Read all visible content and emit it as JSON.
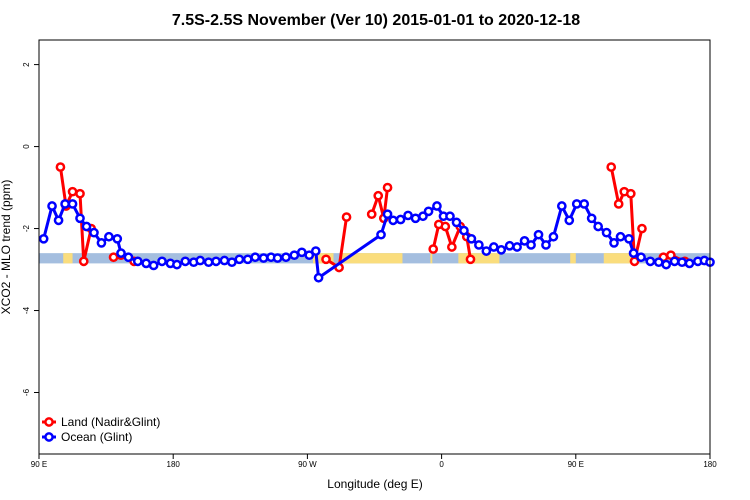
{
  "chart_data": {
    "type": "line",
    "title": "7.5S-2.5S November (Ver 10)   2015-01-01 to 2020-12-18",
    "xlabel": "Longitude (deg E)",
    "ylabel": "XCO2 - MLO trend (ppm)",
    "xlim": [
      90,
      450
    ],
    "ylim": [
      -7.5,
      2.6
    ],
    "x_ticks": [
      {
        "value": 90,
        "label": "90 E"
      },
      {
        "value": 162,
        "label": "180"
      },
      {
        "value": 234,
        "label": "90 W"
      },
      {
        "value": 306,
        "label": "0"
      },
      {
        "value": 378,
        "label": "90 E"
      },
      {
        "value": 450,
        "label": "180"
      }
    ],
    "y_ticks": [
      {
        "value": 2,
        "label": "2"
      },
      {
        "value": 0,
        "label": "0"
      },
      {
        "value": -2,
        "label": "-2"
      },
      {
        "value": -4,
        "label": "-4"
      },
      {
        "value": -6,
        "label": "-6"
      }
    ],
    "land_ocean_strip": {
      "y_range": [
        -2.85,
        -2.6
      ],
      "ocean_color": "#a4bedf",
      "land_color": "#fadd7d",
      "land_segments": [
        [
          103,
          108
        ],
        [
          237,
          248
        ],
        [
          252,
          285
        ],
        [
          300,
          301
        ],
        [
          315,
          337
        ],
        [
          375,
          378
        ],
        [
          393,
          411
        ]
      ]
    },
    "legend": {
      "position": "bottom-left",
      "entries": [
        {
          "label": "Land (Nadir&Glint)",
          "color": "#ff0000"
        },
        {
          "label": "Ocean (Glint)",
          "color": "#0000ff"
        }
      ]
    },
    "series": [
      {
        "name": "Land (Nadir&Glint)",
        "color": "#ff0000",
        "segments": [
          [
            [
              101.5,
              -0.5
            ],
            [
              104.5,
              -1.45
            ],
            [
              108,
              -1.1
            ],
            [
              112,
              -1.15
            ],
            [
              114,
              -2.8
            ],
            [
              118,
              -2.0
            ]
          ],
          [
            [
              130,
              -2.7
            ],
            [
              134,
              -2.65
            ],
            [
              141,
              -2.8
            ]
          ],
          [
            [
              244,
              -2.75
            ],
            [
              251,
              -2.95
            ],
            [
              255,
              -1.72
            ]
          ],
          [
            [
              268.5,
              -1.65
            ],
            [
              272,
              -1.2
            ],
            [
              275,
              -1.75
            ],
            [
              277,
              -1.0
            ]
          ],
          [
            [
              301.5,
              -2.5
            ],
            [
              304.5,
              -1.9
            ],
            [
              308,
              -1.95
            ],
            [
              311.5,
              -2.45
            ],
            [
              316,
              -1.95
            ],
            [
              319.5,
              -2.2
            ],
            [
              321.5,
              -2.75
            ]
          ],
          [
            [
              397,
              -0.5
            ],
            [
              401,
              -1.4
            ],
            [
              404,
              -1.1
            ],
            [
              407.5,
              -1.15
            ],
            [
              409.5,
              -2.8
            ],
            [
              413.5,
              -2.0
            ]
          ],
          [
            [
              425,
              -2.7
            ],
            [
              429,
              -2.65
            ],
            [
              436.5,
              -2.8
            ]
          ]
        ]
      },
      {
        "name": "Ocean (Glint)",
        "color": "#0000ff",
        "points": [
          [
            92.5,
            -2.25
          ],
          [
            97,
            -1.45
          ],
          [
            100.5,
            -1.8
          ],
          [
            104,
            -1.4
          ],
          [
            108,
            -1.4
          ],
          [
            112,
            -1.75
          ],
          [
            115.5,
            -1.95
          ],
          [
            119.5,
            -2.1
          ],
          [
            123.5,
            -2.35
          ],
          [
            127.5,
            -2.2
          ],
          [
            132,
            -2.25
          ],
          [
            134,
            -2.6
          ],
          [
            138,
            -2.7
          ],
          [
            143,
            -2.8
          ],
          [
            147.5,
            -2.85
          ],
          [
            151.5,
            -2.9
          ],
          [
            156,
            -2.8
          ],
          [
            160.5,
            -2.85
          ],
          [
            164,
            -2.88
          ],
          [
            168.5,
            -2.8
          ],
          [
            173,
            -2.82
          ],
          [
            176.5,
            -2.78
          ],
          [
            181,
            -2.82
          ],
          [
            185,
            -2.8
          ],
          [
            189.5,
            -2.78
          ],
          [
            193.5,
            -2.82
          ],
          [
            197.5,
            -2.75
          ],
          [
            202,
            -2.75
          ],
          [
            206,
            -2.7
          ],
          [
            210.5,
            -2.72
          ],
          [
            214.5,
            -2.7
          ],
          [
            218,
            -2.72
          ],
          [
            222.5,
            -2.7
          ],
          [
            227,
            -2.65
          ],
          [
            231,
            -2.58
          ],
          [
            235,
            -2.65
          ],
          [
            238.5,
            -2.55
          ],
          [
            240,
            -3.2
          ],
          [
            273.5,
            -2.15
          ],
          [
            277,
            -1.65
          ],
          [
            280,
            -1.8
          ],
          [
            284,
            -1.78
          ],
          [
            288,
            -1.68
          ],
          [
            292,
            -1.75
          ],
          [
            296,
            -1.7
          ],
          [
            299,
            -1.58
          ],
          [
            303.5,
            -1.45
          ],
          [
            307,
            -1.7
          ],
          [
            310.5,
            -1.7
          ],
          [
            314,
            -1.85
          ],
          [
            318,
            -2.05
          ],
          [
            322,
            -2.25
          ],
          [
            326,
            -2.4
          ],
          [
            330,
            -2.55
          ],
          [
            334,
            -2.45
          ],
          [
            338,
            -2.52
          ],
          [
            342.5,
            -2.42
          ],
          [
            346.5,
            -2.45
          ],
          [
            350.5,
            -2.3
          ],
          [
            354,
            -2.4
          ],
          [
            358,
            -2.15
          ],
          [
            362,
            -2.4
          ],
          [
            366,
            -2.2
          ],
          [
            370.5,
            -1.45
          ],
          [
            374.5,
            -1.8
          ],
          [
            378.5,
            -1.4
          ],
          [
            382.5,
            -1.4
          ],
          [
            386.5,
            -1.75
          ],
          [
            390,
            -1.95
          ],
          [
            394.5,
            -2.1
          ],
          [
            398.5,
            -2.35
          ],
          [
            402,
            -2.2
          ],
          [
            406.5,
            -2.25
          ],
          [
            409,
            -2.6
          ],
          [
            413,
            -2.7
          ],
          [
            418,
            -2.8
          ],
          [
            422.5,
            -2.82
          ],
          [
            426.5,
            -2.88
          ],
          [
            431,
            -2.8
          ],
          [
            435,
            -2.82
          ],
          [
            439,
            -2.85
          ],
          [
            443.5,
            -2.8
          ],
          [
            447,
            -2.78
          ],
          [
            450,
            -2.82
          ]
        ]
      }
    ]
  }
}
